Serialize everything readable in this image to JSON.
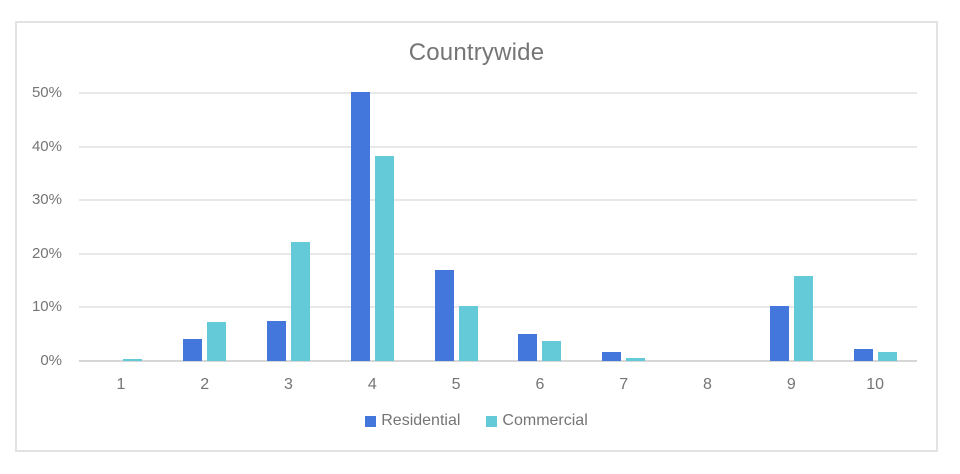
{
  "chart_data": {
    "type": "bar",
    "title": "Countrywide",
    "categories": [
      "1",
      "2",
      "3",
      "4",
      "5",
      "6",
      "7",
      "8",
      "9",
      "10"
    ],
    "series": [
      {
        "name": "Residential",
        "color": "#4377DB",
        "values": [
          0,
          4.1,
          7.4,
          50.2,
          17.0,
          5.0,
          1.7,
          0,
          10.3,
          2.3
        ]
      },
      {
        "name": "Commercial",
        "color": "#64CAD7",
        "values": [
          0.4,
          7.2,
          22.2,
          38.2,
          10.2,
          3.7,
          0.5,
          0,
          15.9,
          1.7
        ]
      }
    ],
    "value_format": "percent",
    "xlabel": "",
    "ylabel": "",
    "ylim": [
      0,
      50
    ],
    "yticks": [
      0,
      10,
      20,
      30,
      40,
      50
    ],
    "ytick_labels": [
      "0%",
      "10%",
      "20%",
      "30%",
      "40%",
      "50%"
    ],
    "grid": true,
    "legend_position": "bottom"
  },
  "theme": {
    "grid_color": "#e8e8e8",
    "baseline_color": "#d6d6d6",
    "text_color": "#757575",
    "panel_border_color": "#e3e3e3",
    "background": "#ffffff"
  }
}
